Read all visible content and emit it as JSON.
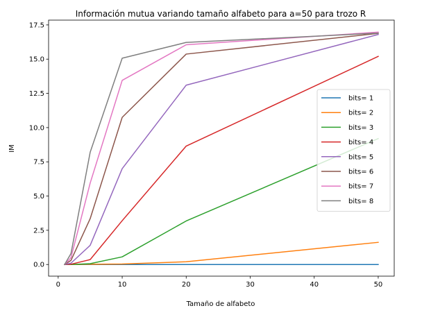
{
  "chart_data": {
    "type": "line",
    "title": "Información mutua variando tamaño alfabeto para  a=50 para trozo R",
    "xlabel": "Tamaño de alfabeto",
    "ylabel": "IM",
    "xlim": [
      -1.5,
      52.5
    ],
    "ylim": [
      -0.85,
      17.85
    ],
    "xticks": [
      0,
      10,
      20,
      30,
      40,
      50
    ],
    "yticks": [
      0.0,
      2.5,
      5.0,
      7.5,
      10.0,
      12.5,
      15.0,
      17.5
    ],
    "x": [
      1,
      2,
      5,
      10,
      20,
      50
    ],
    "grid": false,
    "legend_position": "center-right",
    "series": [
      {
        "name": "bits= 1",
        "color": "#1f77b4",
        "values": [
          0,
          0,
          0,
          0,
          0,
          0
        ]
      },
      {
        "name": "bits= 2",
        "color": "#ff7f0e",
        "values": [
          0,
          0,
          0.02,
          0.04,
          0.2,
          1.62
        ]
      },
      {
        "name": "bits= 3",
        "color": "#2ca02c",
        "values": [
          0,
          0,
          0.06,
          0.56,
          3.18,
          9.2
        ]
      },
      {
        "name": "bits= 4",
        "color": "#d62728",
        "values": [
          0,
          0.02,
          0.36,
          3.2,
          8.65,
          15.2
        ]
      },
      {
        "name": "bits= 5",
        "color": "#9467bd",
        "values": [
          0,
          0.1,
          1.4,
          7.0,
          13.1,
          16.8
        ]
      },
      {
        "name": "bits= 6",
        "color": "#8c564b",
        "values": [
          0,
          0.3,
          3.35,
          10.75,
          15.37,
          16.88
        ]
      },
      {
        "name": "bits= 7",
        "color": "#e377c2",
        "values": [
          0,
          0.5,
          5.95,
          13.45,
          16.05,
          16.97
        ]
      },
      {
        "name": "bits= 8",
        "color": "#7f7f7f",
        "values": [
          0,
          0.8,
          8.2,
          15.07,
          16.22,
          16.9
        ]
      }
    ]
  }
}
